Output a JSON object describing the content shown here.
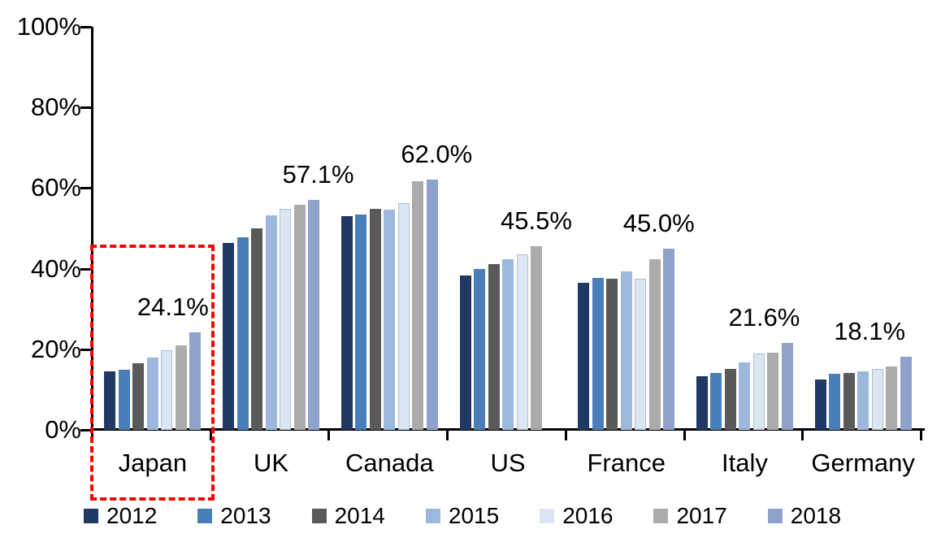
{
  "chart_data": {
    "type": "bar",
    "title": "",
    "categories": [
      "Japan",
      "UK",
      "Canada",
      "US",
      "France",
      "Italy",
      "Germany"
    ],
    "series": [
      {
        "name": "2012",
        "color": "#1F3864",
        "values": [
          14.6,
          46.4,
          53.0,
          38.3,
          36.5,
          13.3,
          12.4
        ]
      },
      {
        "name": "2013",
        "color": "#4A7EBB",
        "values": [
          15.0,
          47.8,
          53.4,
          40.0,
          37.7,
          14.2,
          13.9
        ]
      },
      {
        "name": "2014",
        "color": "#595959",
        "values": [
          16.6,
          49.9,
          54.9,
          41.2,
          37.6,
          15.2,
          14.2
        ]
      },
      {
        "name": "2015",
        "color": "#9DB8DD",
        "values": [
          18.0,
          53.2,
          54.7,
          42.3,
          39.4,
          16.7,
          14.6
        ]
      },
      {
        "name": "2016",
        "color": "#DCE5F2",
        "values": [
          19.8,
          54.8,
          56.3,
          43.6,
          37.4,
          18.9,
          15.2
        ]
      },
      {
        "name": "2017",
        "color": "#ABABAB",
        "values": [
          21.0,
          55.8,
          61.6,
          45.5,
          42.3,
          19.2,
          15.8
        ]
      },
      {
        "name": "2018",
        "color": "#8FA2CC",
        "values": [
          24.1,
          57.1,
          62.0,
          null,
          45.0,
          21.6,
          18.1
        ]
      }
    ],
    "data_labels": [
      "24.1%",
      "57.1%",
      "62.0%",
      "45.5%",
      "45.0%",
      "21.6%",
      "18.1%"
    ],
    "ylim": [
      0,
      100
    ],
    "yticks": [
      "0%",
      "20%",
      "40%",
      "60%",
      "80%",
      "100%"
    ],
    "grid": false,
    "legend_position": "bottom",
    "highlight": {
      "category": "Japan",
      "style": "dashed-box",
      "color": "#FF0000"
    },
    "layout": {
      "label_dx": [
        25,
        58,
        58,
        35,
        40,
        24,
        8
      ]
    }
  }
}
